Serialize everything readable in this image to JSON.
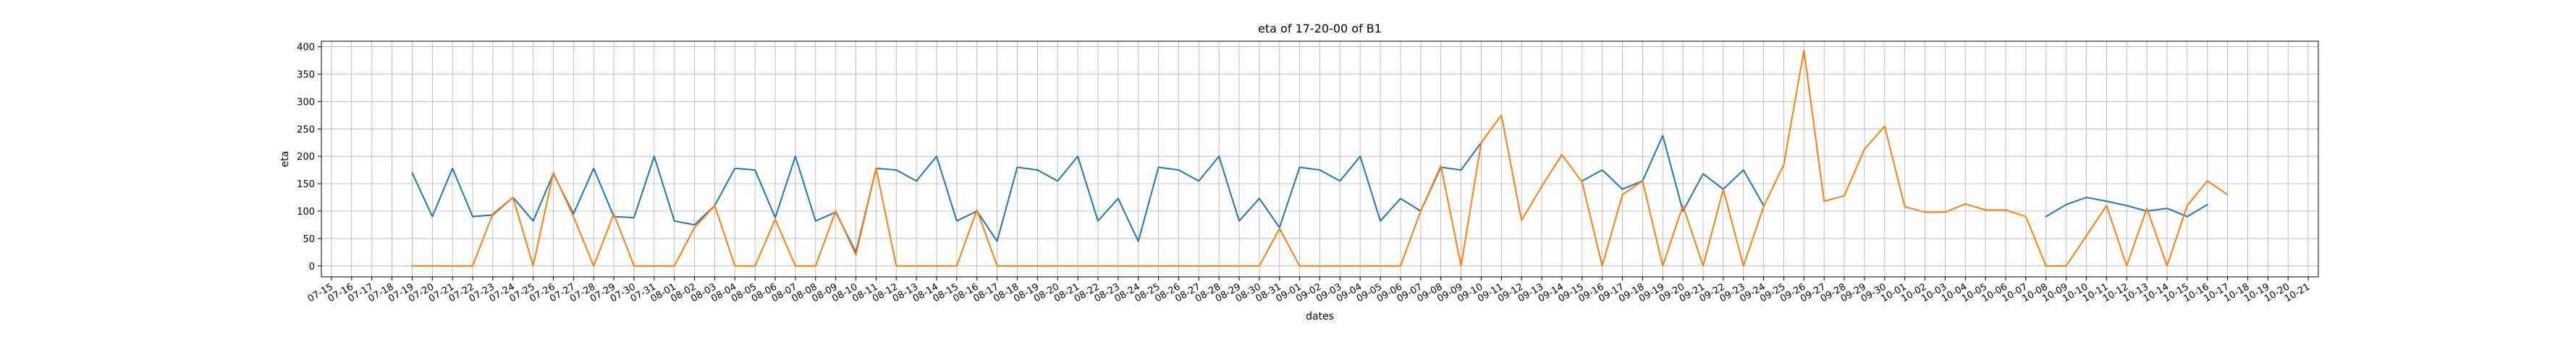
{
  "chart_data": {
    "type": "line",
    "title": "eta of 17-20-00 of B1",
    "xlabel": "dates",
    "ylabel": "eta",
    "ylim": [
      -20,
      410
    ],
    "yticks": [
      0,
      50,
      100,
      150,
      200,
      250,
      300,
      350,
      400
    ],
    "grid": true,
    "x": [
      "07-15",
      "07-16",
      "07-17",
      "07-18",
      "07-19",
      "07-20",
      "07-21",
      "07-22",
      "07-23",
      "07-24",
      "07-25",
      "07-26",
      "07-27",
      "07-28",
      "07-29",
      "07-30",
      "07-31",
      "08-01",
      "08-02",
      "08-03",
      "08-04",
      "08-05",
      "08-06",
      "08-07",
      "08-08",
      "08-09",
      "08-10",
      "08-11",
      "08-12",
      "08-13",
      "08-14",
      "08-15",
      "08-16",
      "08-17",
      "08-18",
      "08-19",
      "08-20",
      "08-21",
      "08-22",
      "08-23",
      "08-24",
      "08-25",
      "08-26",
      "08-27",
      "08-28",
      "08-29",
      "08-30",
      "08-31",
      "09-01",
      "09-02",
      "09-03",
      "09-04",
      "09-05",
      "09-06",
      "09-07",
      "09-08",
      "09-09",
      "09-10",
      "09-11",
      "09-12",
      "09-13",
      "09-14",
      "09-15",
      "09-16",
      "09-17",
      "09-18",
      "09-19",
      "09-20",
      "09-21",
      "09-22",
      "09-23",
      "09-24",
      "09-25",
      "09-26",
      "09-27",
      "09-28",
      "09-29",
      "09-30",
      "10-01",
      "10-02",
      "10-03",
      "10-04",
      "10-05",
      "10-06",
      "10-07",
      "10-08",
      "10-09",
      "10-10",
      "10-11",
      "10-12",
      "10-13",
      "10-14",
      "10-15",
      "10-16",
      "10-17",
      "10-18",
      "10-19",
      "10-20",
      "10-21"
    ],
    "series": [
      {
        "color": "#1f77b4",
        "values": [
          null,
          null,
          null,
          null,
          170,
          90,
          178,
          90,
          93,
          125,
          82,
          168,
          95,
          178,
          90,
          88,
          200,
          82,
          75,
          110,
          178,
          175,
          88,
          200,
          82,
          98,
          25,
          178,
          175,
          155,
          200,
          82,
          100,
          45,
          180,
          175,
          155,
          200,
          82,
          123,
          45,
          180,
          175,
          155,
          200,
          82,
          123,
          70,
          180,
          175,
          155,
          200,
          82,
          123,
          100,
          180,
          175,
          225,
          null,
          null,
          null,
          null,
          155,
          175,
          140,
          155,
          238,
          100,
          168,
          140,
          175,
          110,
          null,
          null,
          null,
          null,
          null,
          null,
          null,
          null,
          null,
          null,
          null,
          null,
          null,
          90,
          112,
          125,
          118,
          110,
          100,
          105,
          90,
          112,
          null,
          null,
          null,
          null,
          null
        ]
      },
      {
        "color": "#ff7f0e",
        "values": [
          null,
          null,
          null,
          null,
          0,
          0,
          0,
          0,
          95,
          125,
          0,
          170,
          90,
          0,
          95,
          0,
          0,
          0,
          70,
          110,
          0,
          0,
          85,
          0,
          0,
          100,
          20,
          178,
          0,
          0,
          0,
          0,
          102,
          0,
          0,
          0,
          0,
          0,
          0,
          0,
          0,
          0,
          0,
          0,
          0,
          0,
          0,
          68,
          0,
          0,
          0,
          0,
          0,
          0,
          100,
          183,
          0,
          225,
          275,
          83,
          145,
          203,
          153,
          0,
          130,
          155,
          0,
          110,
          0,
          140,
          0,
          108,
          185,
          393,
          118,
          128,
          213,
          255,
          108,
          98,
          98,
          113,
          102,
          102,
          90,
          0,
          0,
          55,
          110,
          0,
          105,
          0,
          110,
          155,
          130,
          null,
          null,
          null,
          null
        ]
      }
    ]
  }
}
